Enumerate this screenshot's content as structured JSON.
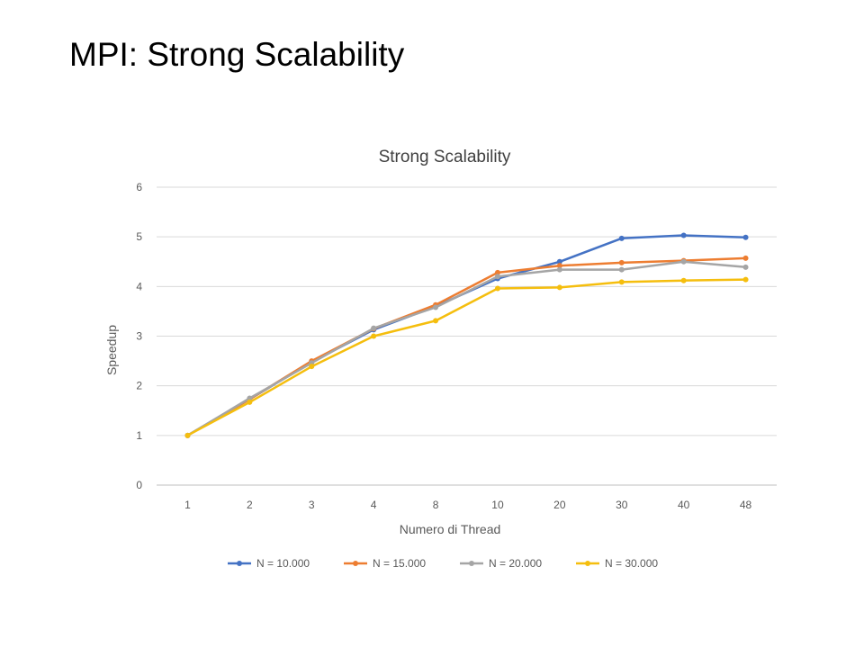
{
  "slide": {
    "title": "MPI: Strong Scalability"
  },
  "chart_data": {
    "type": "line",
    "title": "Strong Scalability",
    "xlabel": "Numero di Thread",
    "ylabel": "Speedup",
    "categories": [
      "1",
      "2",
      "3",
      "4",
      "8",
      "10",
      "20",
      "30",
      "40",
      "48"
    ],
    "ylim": [
      0,
      6
    ],
    "yticks": [
      0,
      1,
      2,
      3,
      4,
      5,
      6
    ],
    "grid": "horizontal",
    "legend_position": "bottom",
    "series": [
      {
        "name": "N = 10.000",
        "color": "#4472C4",
        "values": [
          1,
          1.73,
          2.48,
          3.13,
          3.6,
          4.16,
          4.5,
          4.97,
          5.03,
          4.99
        ]
      },
      {
        "name": "N = 15.000",
        "color": "#ED7D31",
        "values": [
          1,
          1.73,
          2.5,
          3.15,
          3.63,
          4.28,
          4.42,
          4.48,
          4.52,
          4.57
        ]
      },
      {
        "name": "N = 20.000",
        "color": "#A5A5A5",
        "values": [
          1,
          1.75,
          2.46,
          3.16,
          3.58,
          4.2,
          4.34,
          4.34,
          4.5,
          4.39
        ]
      },
      {
        "name": "N = 30.000",
        "color": "#F5BE0E",
        "values": [
          1,
          1.67,
          2.39,
          3.0,
          3.31,
          3.96,
          3.98,
          4.09,
          4.12,
          4.14
        ]
      }
    ]
  }
}
